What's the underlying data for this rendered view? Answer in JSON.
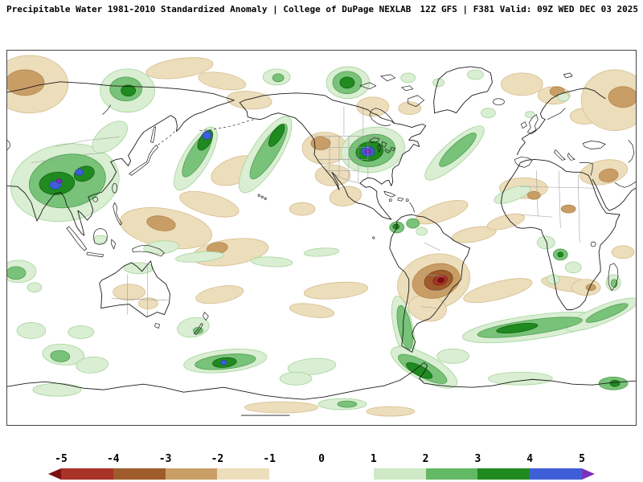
{
  "header": {
    "left": "Precipitable Water 1981-2010 Standardized Anomaly | College of DuPage NEXLAB",
    "right": "12Z GFS | F381 Valid: 09Z WED DEC 03 2025"
  },
  "colorbar": {
    "ticks": [
      "-5",
      "-4",
      "-3",
      "-2",
      "-1",
      "0",
      "1",
      "2",
      "3",
      "4",
      "5"
    ],
    "segments": [
      "#a93226",
      "#9e5c2c",
      "#c99e66",
      "#ecddbb",
      "#ffffff",
      "#ffffff",
      "#cfe9c6",
      "#64b964",
      "#1f8a1f",
      "#3f5fd8"
    ],
    "arrow_left": "#7c0f0f",
    "arrow_right": "#7c2fbf"
  },
  "chart_data": {
    "type": "heatmap",
    "title": "Precipitable Water 1981-2010 Standardized Anomaly",
    "source": "College of DuPage NEXLAB",
    "model": "GFS",
    "run": "12Z",
    "forecast_hour": "F381",
    "valid": "09Z WED DEC 03 2025",
    "units": "standard deviations from 1981-2010 climatology",
    "projection": "global equirectangular, Pacific-centered",
    "scale": {
      "min": -5,
      "max": 5,
      "ticks": [
        -5,
        -4,
        -3,
        -2,
        -1,
        0,
        1,
        2,
        3,
        4,
        5
      ],
      "legend_position": "bottom"
    },
    "notable_anomalies": [
      {
        "region": "Southern China / Southeast Asia",
        "sign": "positive",
        "peak": 5
      },
      {
        "region": "Great Lakes / eastern North America",
        "sign": "positive",
        "peak": 5
      },
      {
        "region": "Northwest Pacific near Kamchatka-Japan",
        "sign": "positive",
        "peak": 4
      },
      {
        "region": "Central Pacific to Gulf of Alaska band",
        "sign": "positive",
        "peak": 3
      },
      {
        "region": "Sea of Okhotsk / eastern Siberia",
        "sign": "positive",
        "peak": 3
      },
      {
        "region": "Alaska interior",
        "sign": "positive",
        "peak": 3
      },
      {
        "region": "Bolivia / central South America",
        "sign": "negative",
        "peak": -5
      },
      {
        "region": "Central Asia / Kazakhstan",
        "sign": "negative",
        "peak": -2
      },
      {
        "region": "Subtropical Pacific bands",
        "sign": "negative",
        "peak": -2
      },
      {
        "region": "Southern Ocean south of Australia",
        "sign": "positive",
        "peak": 4
      },
      {
        "region": "South Atlantic storm-track band",
        "sign": "positive",
        "peak": 3
      },
      {
        "region": "Southern tip of South America",
        "sign": "positive",
        "peak": 3
      }
    ]
  }
}
